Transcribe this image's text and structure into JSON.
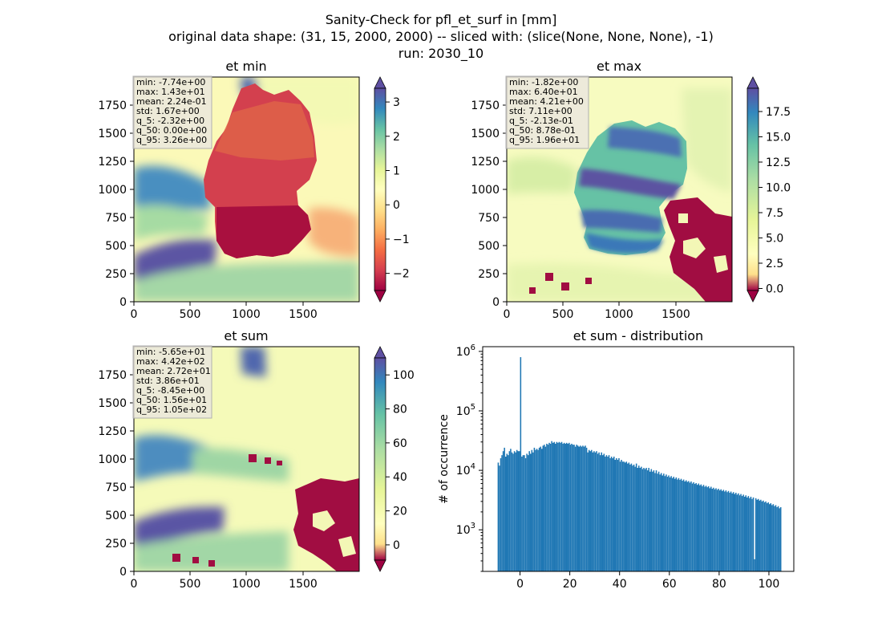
{
  "figure": {
    "title_lines": [
      "Sanity-Check for pfl_et_surf in [mm]",
      "original data shape: (31, 15, 2000, 2000) -- sliced with: (slice(None, None, None), -1)",
      "run: 2030_10"
    ]
  },
  "chart_data": [
    {
      "type": "heatmap",
      "title": "et min",
      "x_ticks": [
        0,
        500,
        1000,
        1500
      ],
      "y_ticks": [
        0,
        250,
        500,
        750,
        1000,
        1250,
        1500,
        1750
      ],
      "xlim": [
        0,
        2000
      ],
      "ylim": [
        0,
        2000
      ],
      "colormap": "Spectral",
      "colorbar": {
        "range": [
          -2.5,
          3.4
        ],
        "ticks": [
          -2,
          -1,
          0,
          1,
          2,
          3
        ],
        "extend": "both"
      },
      "stats": [
        "min: -7.74e+00",
        "max: 1.43e+01",
        "mean: 2.24e-01",
        "std: 1.67e+00",
        "q_5: -2.32e+00",
        "q_50: 0.00e+00",
        "q_95: 3.26e+00"
      ]
    },
    {
      "type": "heatmap",
      "title": "et max",
      "x_ticks": [
        0,
        500,
        1000,
        1500
      ],
      "y_ticks": [
        0,
        250,
        500,
        750,
        1000,
        1250,
        1500,
        1750
      ],
      "xlim": [
        0,
        2000
      ],
      "ylim": [
        0,
        2000
      ],
      "colormap": "Spectral",
      "colorbar": {
        "range": [
          -0.2,
          19.8
        ],
        "ticks": [
          0.0,
          2.5,
          5.0,
          7.5,
          10.0,
          12.5,
          15.0,
          17.5
        ],
        "tick_labels": [
          "0.0",
          "2.5",
          "5.0",
          "7.5",
          "10.0",
          "12.5",
          "15.0",
          "17.5"
        ],
        "extend": "both"
      },
      "stats": [
        "min: -1.82e+00",
        "max: 6.40e+01",
        "mean: 4.21e+00",
        "std: 7.11e+00",
        "q_5: -2.13e-01",
        "q_50: 8.78e-01",
        "q_95: 1.96e+01"
      ]
    },
    {
      "type": "heatmap",
      "title": "et sum",
      "x_ticks": [
        0,
        500,
        1000,
        1500
      ],
      "y_ticks": [
        0,
        250,
        500,
        750,
        1000,
        1250,
        1500,
        1750
      ],
      "xlim": [
        0,
        2000
      ],
      "ylim": [
        0,
        2000
      ],
      "colormap": "Spectral",
      "colorbar": {
        "range": [
          -9,
          110
        ],
        "ticks": [
          0,
          20,
          40,
          60,
          80,
          100
        ],
        "extend": "both"
      },
      "stats": [
        "min: -5.65e+01",
        "max: 4.42e+02",
        "mean: 2.72e+01",
        "std: 3.86e+01",
        "q_5: -8.45e+00",
        "q_50: 1.56e+01",
        "q_95: 1.05e+02"
      ]
    },
    {
      "type": "bar",
      "title": "et sum - distribution",
      "xlabel": "",
      "ylabel": "# of occurrence",
      "yscale": "log",
      "xlim": [
        -15,
        110
      ],
      "ylim": [
        200,
        1200000
      ],
      "x_ticks": [
        0,
        20,
        40,
        60,
        80,
        100
      ],
      "y_ticks": [
        1000,
        10000,
        100000,
        1000000
      ],
      "bar_color": "#1f77b4",
      "bins": [
        [
          -9.0,
          13500
        ],
        [
          -8.5,
          12000
        ],
        [
          -8.0,
          16000
        ],
        [
          -7.5,
          18000
        ],
        [
          -7.0,
          21000
        ],
        [
          -6.5,
          24000
        ],
        [
          -6.0,
          17000
        ],
        [
          -5.5,
          19000
        ],
        [
          -5.0,
          18000
        ],
        [
          -4.5,
          21000
        ],
        [
          -4.0,
          23000
        ],
        [
          -3.5,
          20000
        ],
        [
          -3.0,
          19000
        ],
        [
          -2.5,
          21000
        ],
        [
          -2.0,
          20000
        ],
        [
          -1.5,
          22000
        ],
        [
          -1.0,
          21000
        ],
        [
          -0.5,
          21000
        ],
        [
          0.0,
          800000
        ],
        [
          0.5,
          17000
        ],
        [
          1.0,
          18000
        ],
        [
          1.5,
          18000
        ],
        [
          2.0,
          16000
        ],
        [
          2.5,
          19000
        ],
        [
          3.0,
          18000
        ],
        [
          3.5,
          21000
        ],
        [
          4.0,
          19000
        ],
        [
          4.5,
          22000
        ],
        [
          5.0,
          20000
        ],
        [
          5.5,
          24000
        ],
        [
          6.0,
          22000
        ],
        [
          6.5,
          23000
        ],
        [
          7.0,
          22000
        ],
        [
          7.5,
          24000
        ],
        [
          8.0,
          25000
        ],
        [
          8.5,
          23000
        ],
        [
          9.0,
          26000
        ],
        [
          9.5,
          27000
        ],
        [
          10.0,
          25000
        ],
        [
          10.5,
          28000
        ],
        [
          11.0,
          27000
        ],
        [
          11.5,
          29000
        ],
        [
          12.0,
          28000
        ],
        [
          12.5,
          31000
        ],
        [
          13.0,
          29000
        ],
        [
          13.5,
          30000
        ],
        [
          14.0,
          28000
        ],
        [
          14.5,
          30000
        ],
        [
          15.0,
          29000
        ],
        [
          15.5,
          30000
        ],
        [
          16.0,
          29000
        ],
        [
          16.5,
          30000
        ],
        [
          17.0,
          28000
        ],
        [
          17.5,
          29000
        ],
        [
          18.0,
          28000
        ],
        [
          18.5,
          29000
        ],
        [
          19.0,
          28000
        ],
        [
          19.5,
          29000
        ],
        [
          20.0,
          27000
        ],
        [
          20.5,
          28000
        ],
        [
          21.0,
          27000
        ],
        [
          21.5,
          27000
        ],
        [
          22.0,
          25000
        ],
        [
          22.5,
          27000
        ],
        [
          23.0,
          26000
        ],
        [
          23.5,
          25000
        ],
        [
          24.0,
          26000
        ],
        [
          24.5,
          25000
        ],
        [
          25.0,
          26000
        ],
        [
          25.5,
          25000
        ],
        [
          26.0,
          26000
        ],
        [
          26.5,
          24000
        ],
        [
          27.0,
          20000
        ],
        [
          27.5,
          22000
        ],
        [
          28.0,
          21000
        ],
        [
          28.5,
          22000
        ],
        [
          29.0,
          20000
        ],
        [
          29.5,
          21000
        ],
        [
          30.0,
          20000
        ],
        [
          30.5,
          21000
        ],
        [
          31.0,
          19000
        ],
        [
          31.5,
          20000
        ],
        [
          32.0,
          18000
        ],
        [
          32.5,
          20000
        ],
        [
          33.0,
          18000
        ],
        [
          33.5,
          19000
        ],
        [
          34.0,
          17000
        ],
        [
          34.5,
          18000
        ],
        [
          35.0,
          17000
        ],
        [
          35.5,
          18000
        ],
        [
          36.0,
          16000
        ],
        [
          36.5,
          17000
        ],
        [
          37.0,
          16000
        ],
        [
          37.5,
          17000
        ],
        [
          38.0,
          15000
        ],
        [
          38.5,
          16000
        ],
        [
          39.0,
          15000
        ],
        [
          39.5,
          16000
        ],
        [
          40.0,
          14000
        ],
        [
          40.5,
          15000
        ],
        [
          41.0,
          14000
        ],
        [
          41.5,
          14000
        ],
        [
          42.0,
          13500
        ],
        [
          42.5,
          14000
        ],
        [
          43.0,
          13000
        ],
        [
          43.5,
          13500
        ],
        [
          44.0,
          12500
        ],
        [
          44.5,
          13000
        ],
        [
          45.0,
          12000
        ],
        [
          45.5,
          12500
        ],
        [
          46.0,
          11500
        ],
        [
          46.5,
          13000
        ],
        [
          47.0,
          11000
        ],
        [
          47.5,
          12000
        ],
        [
          48.0,
          11000
        ],
        [
          48.5,
          11500
        ],
        [
          49.0,
          10500
        ],
        [
          49.5,
          11000
        ],
        [
          50.0,
          10500
        ],
        [
          50.5,
          11000
        ],
        [
          51.0,
          10000
        ],
        [
          51.5,
          11000
        ],
        [
          52.0,
          9500
        ],
        [
          52.5,
          10500
        ],
        [
          53.0,
          9500
        ],
        [
          53.5,
          10000
        ],
        [
          54.0,
          9000
        ],
        [
          54.5,
          10000
        ],
        [
          55.0,
          8800
        ],
        [
          55.5,
          9500
        ],
        [
          56.0,
          8500
        ],
        [
          56.5,
          9000
        ],
        [
          57.0,
          8200
        ],
        [
          57.5,
          8800
        ],
        [
          58.0,
          8000
        ],
        [
          58.5,
          8500
        ],
        [
          59.0,
          7800
        ],
        [
          59.5,
          8200
        ],
        [
          60.0,
          7600
        ],
        [
          60.5,
          8000
        ],
        [
          61.0,
          7400
        ],
        [
          61.5,
          7800
        ],
        [
          62.0,
          7200
        ],
        [
          62.5,
          7600
        ],
        [
          63.0,
          7000
        ],
        [
          63.5,
          7400
        ],
        [
          64.0,
          6900
        ],
        [
          64.5,
          7200
        ],
        [
          65.0,
          6700
        ],
        [
          65.5,
          7000
        ],
        [
          66.0,
          6500
        ],
        [
          66.5,
          6800
        ],
        [
          67.0,
          6400
        ],
        [
          67.5,
          6600
        ],
        [
          68.0,
          6200
        ],
        [
          68.5,
          6500
        ],
        [
          69.0,
          6000
        ],
        [
          69.5,
          6300
        ],
        [
          70.0,
          5900
        ],
        [
          70.5,
          6100
        ],
        [
          71.0,
          5700
        ],
        [
          71.5,
          6000
        ],
        [
          72.0,
          5600
        ],
        [
          72.5,
          5800
        ],
        [
          73.0,
          5400
        ],
        [
          73.5,
          5700
        ],
        [
          74.0,
          5300
        ],
        [
          74.5,
          5500
        ],
        [
          75.0,
          5200
        ],
        [
          75.5,
          5400
        ],
        [
          76.0,
          5000
        ],
        [
          76.5,
          5300
        ],
        [
          77.0,
          4900
        ],
        [
          77.5,
          5100
        ],
        [
          78.0,
          4800
        ],
        [
          78.5,
          5000
        ],
        [
          79.0,
          4700
        ],
        [
          79.5,
          4900
        ],
        [
          80.0,
          4600
        ],
        [
          80.5,
          4800
        ],
        [
          81.0,
          4500
        ],
        [
          81.5,
          4700
        ],
        [
          82.0,
          4400
        ],
        [
          82.5,
          4600
        ],
        [
          83.0,
          4300
        ],
        [
          83.5,
          4500
        ],
        [
          84.0,
          4200
        ],
        [
          84.5,
          4400
        ],
        [
          85.0,
          4100
        ],
        [
          85.5,
          4300
        ],
        [
          86.0,
          4000
        ],
        [
          86.5,
          4200
        ],
        [
          87.0,
          3900
        ],
        [
          87.5,
          4100
        ],
        [
          88.0,
          3800
        ],
        [
          88.5,
          4000
        ],
        [
          89.0,
          3700
        ],
        [
          89.5,
          3900
        ],
        [
          90.0,
          3600
        ],
        [
          90.5,
          3800
        ],
        [
          91.0,
          3500
        ],
        [
          91.5,
          3700
        ],
        [
          92.0,
          3400
        ],
        [
          92.5,
          3600
        ],
        [
          93.0,
          3300
        ],
        [
          93.5,
          3500
        ],
        [
          94.0,
          320
        ],
        [
          94.5,
          3400
        ],
        [
          95.0,
          3200
        ],
        [
          95.5,
          3300
        ],
        [
          96.0,
          3100
        ],
        [
          96.5,
          3200
        ],
        [
          97.0,
          3000
        ],
        [
          97.5,
          3100
        ],
        [
          98.0,
          2900
        ],
        [
          98.5,
          3000
        ],
        [
          99.0,
          2800
        ],
        [
          99.5,
          2900
        ],
        [
          100.0,
          2700
        ],
        [
          100.5,
          2800
        ],
        [
          101.0,
          2600
        ],
        [
          101.5,
          2700
        ],
        [
          102.0,
          2500
        ],
        [
          102.5,
          2600
        ],
        [
          103.0,
          2400
        ],
        [
          103.5,
          2500
        ],
        [
          104.0,
          2300
        ],
        [
          104.5,
          2400
        ]
      ]
    }
  ]
}
